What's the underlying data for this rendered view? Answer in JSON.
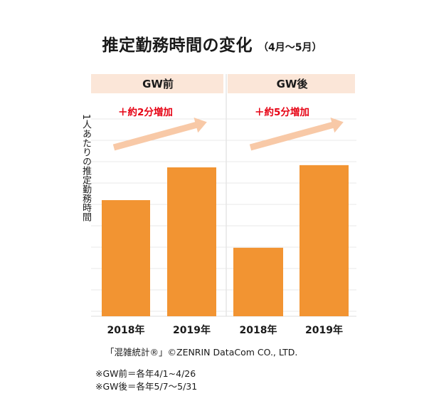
{
  "title": {
    "main": "推定勤務時間の変化",
    "sub": "（4月～5月）"
  },
  "chart_data": {
    "type": "bar",
    "ylabel": "1人あたりの推定勤務時間",
    "grid": true,
    "ylim": [
      0,
      100
    ],
    "panels": [
      {
        "label": "GW前",
        "categories": [
          "2018年",
          "2019年"
        ],
        "values": [
          78,
          100
        ],
        "annotation": "＋約2分増加"
      },
      {
        "label": "GW後",
        "categories": [
          "2018年",
          "2019年"
        ],
        "values": [
          46,
          101.5
        ],
        "annotation": "＋約5分増加"
      }
    ],
    "colors": {
      "bar": "#F29432",
      "panel_header": "#FBE6D8",
      "arrow": "#F8C9A7",
      "annotation": "#E60012",
      "grid": "#E8E8E8"
    }
  },
  "source": "「混雑統計®」©ZENRIN DataCom CO., LTD.",
  "notes": [
    "※GW前＝各年4/1~4/26",
    "※GW後＝各年5/7～5/31"
  ]
}
